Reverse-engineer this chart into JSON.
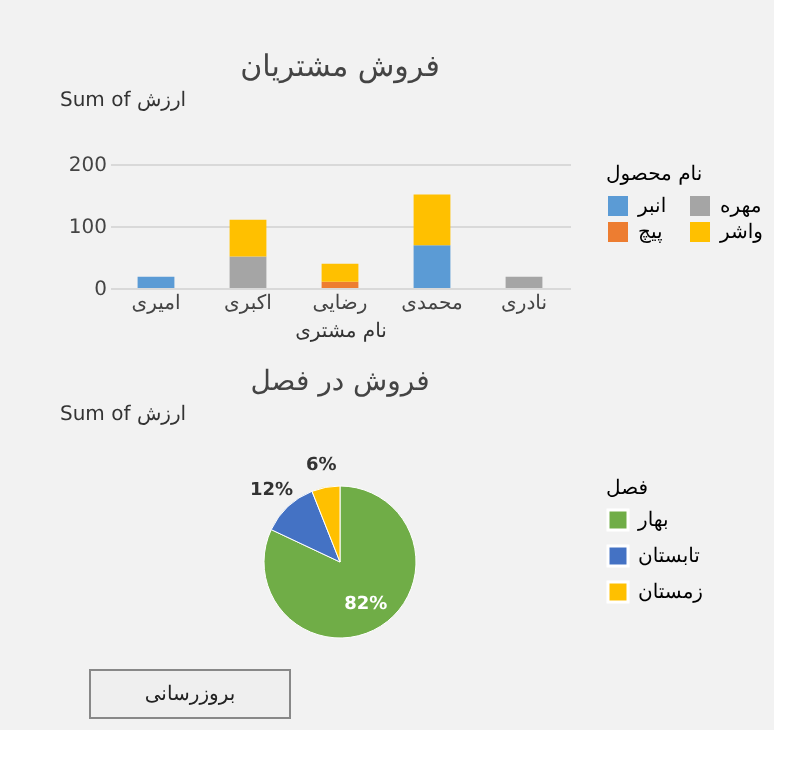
{
  "chart_data": [
    {
      "type": "bar",
      "title": "فروش مشتریان",
      "xlabel": "نام مشتری",
      "legend_title": "نام محصول",
      "annotations": [
        "Sum of ارزش"
      ],
      "categories": [
        "امیری",
        "اکبری",
        "رضایی",
        "محمدی",
        "نادری"
      ],
      "stacked": true,
      "ylim": [
        0,
        200
      ],
      "yticks": [
        0,
        100,
        200
      ],
      "grid": "y",
      "legend": "right",
      "series": [
        {
          "name": "انبر",
          "color": "#5b9bd5",
          "values": [
            18,
            0,
            0,
            69,
            0
          ]
        },
        {
          "name": "پیچ",
          "color": "#ed7d31",
          "values": [
            0,
            0,
            10,
            0,
            0
          ]
        },
        {
          "name": "مهره",
          "color": "#a5a5a5",
          "values": [
            0,
            51,
            0,
            0,
            18
          ]
        },
        {
          "name": "واشر",
          "color": "#ffc000",
          "values": [
            0,
            59,
            29,
            82,
            0
          ]
        }
      ]
    },
    {
      "type": "pie",
      "title": "فروش در فصل",
      "legend_title": "فصل",
      "annotations": [
        "Sum of ارزش",
        "بروزرسانی"
      ],
      "categories": [
        "بهار",
        "تابستان",
        "زمستان"
      ],
      "values": [
        82,
        12,
        6
      ],
      "colors": [
        "#70ad47",
        "#4472c4",
        "#ffc000"
      ],
      "value_labels": [
        "82%",
        "12%",
        "6%"
      ],
      "legend": "right"
    }
  ]
}
